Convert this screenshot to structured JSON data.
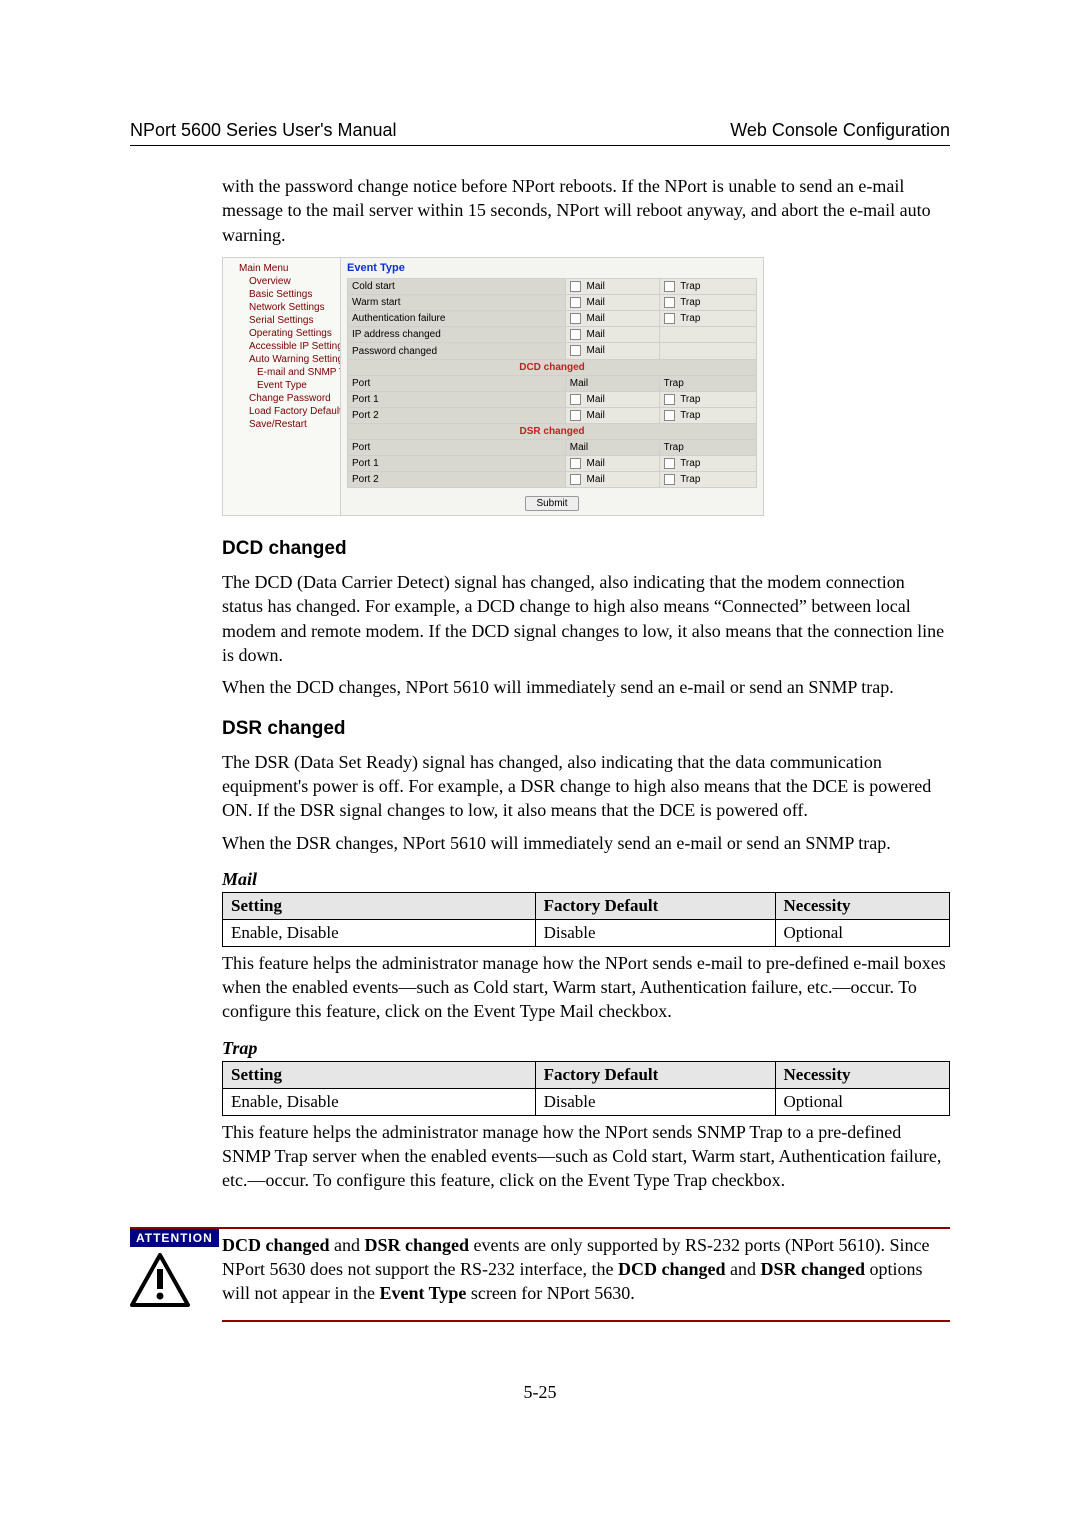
{
  "header": {
    "left": "NPort 5600 Series User's Manual",
    "right": "Web Console Configuration"
  },
  "intro_para": "with the password change notice before NPort reboots. If the NPort is unable to send an e-mail message to the mail server within 15 seconds, NPort will reboot anyway, and abort the e-mail auto warning.",
  "screenshot": {
    "sidebar": [
      {
        "label": "Main Menu",
        "cls": "item"
      },
      {
        "label": "Overview",
        "cls": "item sub"
      },
      {
        "label": "Basic Settings",
        "cls": "item sub"
      },
      {
        "label": "Network Settings",
        "cls": "item sub"
      },
      {
        "label": "Serial Settings",
        "cls": "item sub"
      },
      {
        "label": "Operating Settings",
        "cls": "item sub"
      },
      {
        "label": "Accessible IP Settings",
        "cls": "item sub"
      },
      {
        "label": "Auto Warning Settings",
        "cls": "item sub"
      },
      {
        "label": "E-mail and SNMP Tr",
        "cls": "item sub2"
      },
      {
        "label": "Event Type",
        "cls": "item sub2"
      },
      {
        "label": "Change Password",
        "cls": "item sub"
      },
      {
        "label": "Load Factory Default",
        "cls": "item sub"
      },
      {
        "label": "Save/Restart",
        "cls": "item sub"
      }
    ],
    "title": "Event Type",
    "events": [
      {
        "name": "Cold start",
        "mail": true,
        "trap": true
      },
      {
        "name": "Warm start",
        "mail": true,
        "trap": true
      },
      {
        "name": "Authentication failure",
        "mail": true,
        "trap": true
      },
      {
        "name": "IP address changed",
        "mail": true,
        "trap": false
      },
      {
        "name": "Password changed",
        "mail": true,
        "trap": false
      }
    ],
    "mail_label": "Mail",
    "trap_label": "Trap",
    "port_label": "Port",
    "dcd_heading": "DCD changed",
    "dsr_heading": "DSR changed",
    "ports": [
      "Port 1",
      "Port 2"
    ],
    "submit": "Submit"
  },
  "dcd": {
    "heading": "DCD changed",
    "p1": "The DCD (Data Carrier Detect) signal has changed, also indicating that the modem connection status has changed. For example, a DCD change to high also means “Connected” between local modem and remote modem. If the DCD signal changes to low, it also means that the connection line is down.",
    "p2": "When the DCD changes, NPort 5610 will immediately send an e-mail or send an SNMP trap."
  },
  "dsr": {
    "heading": "DSR changed",
    "p1": "The DSR (Data Set Ready) signal has changed, also indicating that the data communication equipment's power is off. For example, a DSR change to high also means that the DCE is powered ON. If the DSR signal changes to low, it also means that the DCE is powered off.",
    "p2": "When the DSR changes, NPort 5610 will immediately send an e-mail or send an SNMP trap."
  },
  "mail_table": {
    "label": "Mail",
    "headers": {
      "setting": "Setting",
      "default": "Factory Default",
      "necessity": "Necessity"
    },
    "row": {
      "setting": "Enable, Disable",
      "default": "Disable",
      "necessity": "Optional"
    },
    "note": "This feature helps the administrator manage how the NPort sends e-mail to pre-defined e-mail boxes when the enabled events—such as Cold start, Warm start, Authentication failure, etc.—occur. To configure this feature, click on the Event Type Mail checkbox."
  },
  "trap_table": {
    "label": "Trap",
    "headers": {
      "setting": "Setting",
      "default": "Factory Default",
      "necessity": "Necessity"
    },
    "row": {
      "setting": "Enable, Disable",
      "default": "Disable",
      "necessity": "Optional"
    },
    "note": "This feature helps the administrator manage how the NPort sends SNMP Trap to a pre-defined SNMP Trap server when the enabled events—such as Cold start, Warm start, Authentication failure, etc.—occur. To configure this feature, click on the Event Type Trap checkbox."
  },
  "attention": {
    "badge": "ATTENTION",
    "text_parts": [
      "DCD changed",
      " and ",
      "DSR changed",
      " events are only supported by RS-232 ports (NPort 5610). Since NPort 5630 does not support the RS-232 interface, the ",
      "DCD changed",
      " and ",
      "DSR changed",
      " options will not appear in the ",
      "Event Type",
      " screen for NPort 5630."
    ]
  },
  "page_number": "5-25"
}
